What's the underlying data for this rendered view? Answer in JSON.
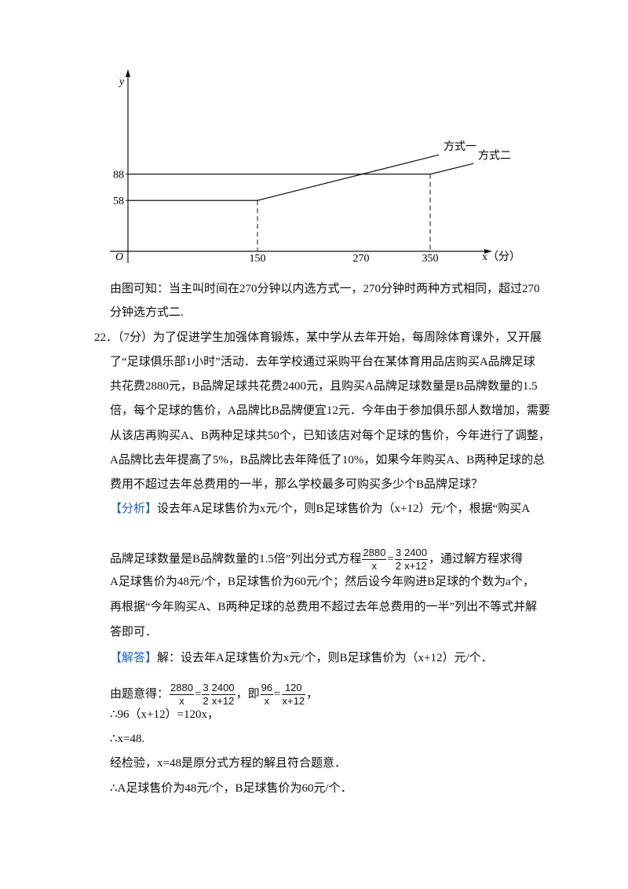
{
  "figure": {
    "y_label": "y",
    "x_label": "x（分）",
    "origin": "O",
    "xlim": [
      0,
      420
    ],
    "ylim": [
      0,
      197
    ],
    "xticks": [
      150,
      270,
      350
    ],
    "yticks": [
      58,
      88
    ],
    "series": [
      {
        "name": "方式一",
        "x": [
          0,
          150,
          360
        ],
        "y": [
          58,
          58,
          110
        ]
      },
      {
        "name": "方式二",
        "x": [
          0,
          350,
          400
        ],
        "y": [
          88,
          88,
          100
        ]
      }
    ]
  },
  "text": {
    "lines": [
      [
        "由图可知：当主叫时间在270分钟以内选方式一，270分钟时两种方式相同，超过270"
      ],
      [
        "分钟选方式二."
      ],
      [
        "22．（7分）为了促进学生加强体育锻炼，某中学从去年开始，每周除体育课外，又开展"
      ],
      [
        "了“足球俱乐部1小时”活动．去年学校通过采购平台在某体育用品店购买A品牌足球"
      ],
      [
        "共花费2880元，B品牌足球共花费2400元，且购买A品牌足球数量是B品牌数量的1.5"
      ],
      [
        "倍，每个足球的售价，A品牌比B品牌便宜12元．今年由于参加俱乐部人数增加，需要"
      ],
      [
        "从该店再购买A、B两种足球共50个，已知该店对每个足球的售价，今年进行了调整，"
      ],
      [
        "A品牌比去年提高了5%，B品牌比去年降低了10%，如果今年购买A、B两种足球的总"
      ],
      [
        "费用不超过去年总费用的一半，那么学校最多可购买多少个B品牌足球？"
      ],
      [
        {
          "tag": "【分析】"
        },
        "设去年A足球售价为x元/个，则B足球售价为（x+12）元/个，根据“购买A"
      ],
      [
        "品牌足球数量是B品牌数量的1.5倍”列出分式方程",
        {
          "num": "2880",
          "den": "x"
        },
        "=",
        {
          "num": "3",
          "den": "2"
        },
        {
          "num": "2400",
          "den": "x+12"
        },
        "，通过解方程求得"
      ],
      [
        "A足球售价为48元/个，B足球售价为60元/个；然后设今年购进B足球的个数为a个，"
      ],
      [
        "再根据“今年购买A、B两种足球的总费用不超过去年总费用的一半”列出不等式并解"
      ],
      [
        "答即可．"
      ],
      [
        {
          "tag": "【解答】"
        },
        "解：设去年A足球售价为x元/个，则B足球售价为（x+12）元/个．"
      ],
      [
        "由题意得：",
        {
          "num": "2880",
          "den": "x"
        },
        "=",
        {
          "num": "3",
          "den": "2"
        },
        {
          "num": "2400",
          "den": "x+12"
        },
        "，即",
        {
          "num": "96",
          "den": "x"
        },
        "=",
        {
          "num": "120",
          "den": "x+12"
        },
        "，"
      ],
      [
        "∴96（x+12）=120x，"
      ],
      [
        "∴x=48."
      ],
      [
        "经检验，x=48是原分式方程的解且符合题意．"
      ],
      [
        "∴A足球售价为48元/个，B足球售价为60元/个．"
      ]
    ]
  }
}
